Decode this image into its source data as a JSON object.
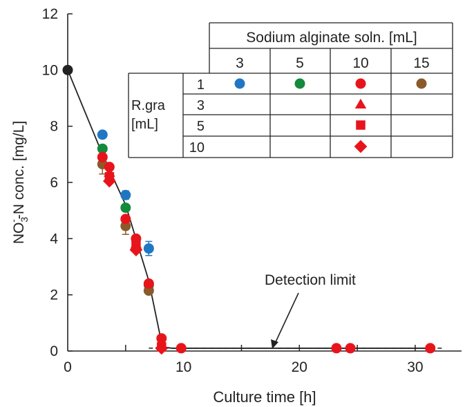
{
  "chart_data": {
    "type": "scatter",
    "xlabel": "Culture time [h]",
    "ylabel_parts": {
      "pre": "NO",
      "sub": "3",
      "sup": "-",
      "post": "-N conc.  [mg/L]"
    },
    "xlim": [
      0,
      34
    ],
    "ylim": [
      0,
      12
    ],
    "x_ticks": [
      0,
      10,
      20,
      30
    ],
    "y_ticks": [
      0,
      2,
      4,
      6,
      8,
      10,
      12
    ],
    "grid": false,
    "detection_limit": {
      "value": 0.1,
      "label": "Detection limit"
    },
    "legend_table": {
      "title": "Sodium alginate soln. [mL]",
      "col_headers": [
        "3",
        "5",
        "10",
        "15"
      ],
      "row_title_line1": "R.gra",
      "row_title_line2": "[mL]",
      "row_headers": [
        "1",
        "3",
        "5",
        "10"
      ]
    },
    "colors": {
      "blue": "#1f77c4",
      "green": "#138a3c",
      "red": "#e8141c",
      "brown": "#8b5a2b",
      "black": "#222222"
    },
    "curve": {
      "x": [
        0,
        3,
        5,
        7,
        8,
        8.1,
        9,
        31.5
      ],
      "y": [
        10,
        7,
        5.2,
        2.5,
        0.5,
        0.15,
        0.1,
        0.1
      ]
    },
    "series": [
      {
        "color": "black",
        "marker": "circle",
        "points": [
          [
            0,
            10
          ]
        ]
      },
      {
        "color": "blue",
        "marker": "circle",
        "points": [
          [
            3,
            7.7
          ],
          [
            5,
            5.55
          ],
          [
            7,
            3.65
          ]
        ],
        "err": [
          0,
          0.15,
          0.25
        ]
      },
      {
        "color": "green",
        "marker": "circle",
        "points": [
          [
            3,
            7.2
          ],
          [
            5,
            5.1
          ],
          [
            7,
            2.35
          ]
        ]
      },
      {
        "color": "brown",
        "marker": "circle",
        "points": [
          [
            3,
            6.65
          ],
          [
            5,
            4.45
          ],
          [
            7,
            2.15
          ]
        ],
        "err": [
          0.35,
          0.3,
          0
        ]
      },
      {
        "color": "red",
        "marker": "circle",
        "points": [
          [
            3,
            6.9
          ],
          [
            3.6,
            6.55
          ],
          [
            5,
            4.7
          ],
          [
            5.9,
            4.0
          ],
          [
            7,
            2.4
          ],
          [
            8.1,
            0.45
          ],
          [
            9.8,
            0.1
          ],
          [
            23.2,
            0.1
          ],
          [
            24.4,
            0.1
          ],
          [
            31.3,
            0.1
          ]
        ]
      },
      {
        "color": "red",
        "marker": "triangle",
        "points": [
          [
            3.6,
            6.35
          ],
          [
            5.9,
            3.8
          ],
          [
            8.1,
            0.2
          ]
        ]
      },
      {
        "color": "red",
        "marker": "square",
        "points": [
          [
            3.6,
            6.2
          ],
          [
            5.9,
            3.75
          ],
          [
            8.1,
            0.15
          ]
        ]
      },
      {
        "color": "red",
        "marker": "diamond",
        "points": [
          [
            3.6,
            6.05
          ],
          [
            5.9,
            3.6
          ],
          [
            8.1,
            0.1
          ]
        ]
      }
    ]
  }
}
